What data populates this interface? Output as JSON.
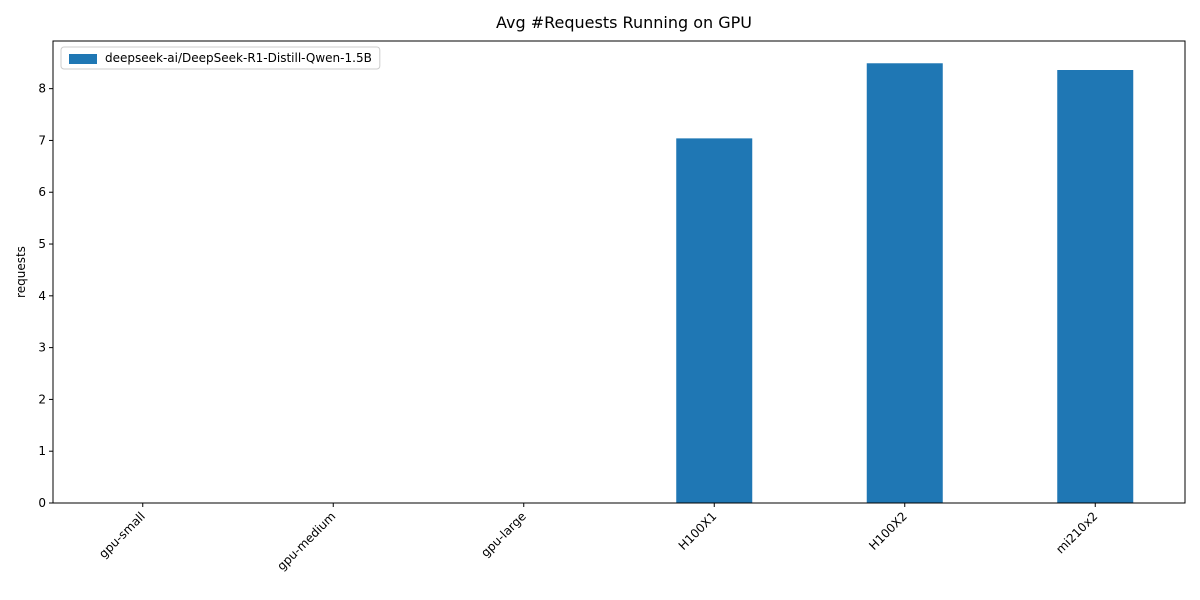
{
  "chart_data": {
    "type": "bar",
    "title": "Avg #Requests Running on GPU",
    "xlabel": "",
    "ylabel": "requests",
    "categories": [
      "gpu-small",
      "gpu-medium",
      "gpu-large",
      "H100X1",
      "H100X2",
      "mi210x2"
    ],
    "series": [
      {
        "name": "deepseek-ai/DeepSeek-R1-Distill-Qwen-1.5B",
        "values": [
          0,
          0,
          0,
          7.04,
          8.49,
          8.36
        ],
        "color": "#1f77b4"
      }
    ],
    "ylim": [
      0,
      8.92
    ],
    "yticks": [
      0,
      1,
      2,
      3,
      4,
      5,
      6,
      7,
      8
    ],
    "grid": false,
    "legend": "top-left",
    "xtick_rotation": "45 degrees, right-aligned"
  }
}
